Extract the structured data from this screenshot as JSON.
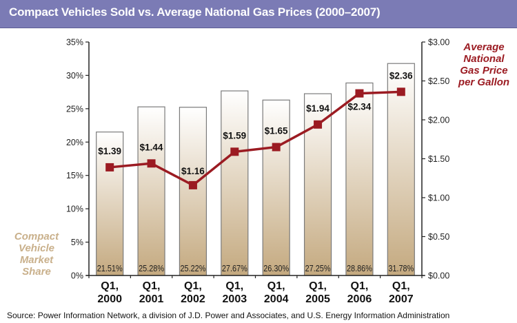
{
  "title": "Compact Vehicles Sold vs. Average National Gas Prices (2000–2007)",
  "source": "Source: Power Information Network, a division of J.D. Power and Associates, and U.S. Energy Information Administration",
  "colors": {
    "title_bar": "#7b7bb5",
    "bar_top": "#ffffff",
    "bar_bottom": "#c4a97f",
    "bar_border": "#7a7a7a",
    "line": "#9b1b22",
    "left_axis_title": "#c9b08b",
    "right_axis_title": "#9b1b22"
  },
  "chart_data": {
    "type": "bar+line",
    "title": "Compact Vehicles Sold vs. Average National Gas Prices (2000–2007)",
    "categories": [
      "Q1, 2000",
      "Q1, 2001",
      "Q1, 2002",
      "Q1, 2003",
      "Q1, 2004",
      "Q1, 2005",
      "Q1, 2006",
      "Q1, 2007"
    ],
    "category_lines": [
      [
        "Q1,",
        "2000"
      ],
      [
        "Q1,",
        "2001"
      ],
      [
        "Q1,",
        "2002"
      ],
      [
        "Q1,",
        "2003"
      ],
      [
        "Q1,",
        "2004"
      ],
      [
        "Q1,",
        "2005"
      ],
      [
        "Q1,",
        "2006"
      ],
      [
        "Q1,",
        "2007"
      ]
    ],
    "series": [
      {
        "name": "Compact Vehicle Market Share",
        "type": "bar",
        "axis": "left",
        "values": [
          21.51,
          25.28,
          25.22,
          27.67,
          26.3,
          27.25,
          28.86,
          31.78
        ],
        "labels": [
          "21.51%",
          "25.28%",
          "25.22%",
          "27.67%",
          "26.30%",
          "27.25%",
          "28.86%",
          "31.78%"
        ]
      },
      {
        "name": "Average National Gas Price per Gallon",
        "type": "line",
        "axis": "right",
        "values": [
          1.39,
          1.44,
          1.16,
          1.59,
          1.65,
          1.94,
          2.34,
          2.36
        ],
        "labels": [
          "$1.39",
          "$1.44",
          "$1.16",
          "$1.59",
          "$1.65",
          "$1.94",
          "$2.34",
          "$2.36"
        ]
      }
    ],
    "left_axis": {
      "title_lines": [
        "Compact",
        "Vehicle",
        "Market",
        "Share"
      ],
      "range": [
        0,
        35
      ],
      "ticks": [
        0,
        5,
        10,
        15,
        20,
        25,
        30,
        35
      ],
      "tick_labels": [
        "0%",
        "5%",
        "10%",
        "15%",
        "20%",
        "25%",
        "30%",
        "35%"
      ]
    },
    "right_axis": {
      "title_lines": [
        "Average",
        "National",
        "Gas Price",
        "per Gallon"
      ],
      "range": [
        0,
        3
      ],
      "ticks": [
        0,
        0.5,
        1,
        1.5,
        2,
        2.5,
        3
      ],
      "tick_labels": [
        "$0.00",
        "$0.50",
        "$1.00",
        "$1.50",
        "$2.00",
        "$2.50",
        "$3.00"
      ]
    },
    "grid": false,
    "legend": "none"
  }
}
